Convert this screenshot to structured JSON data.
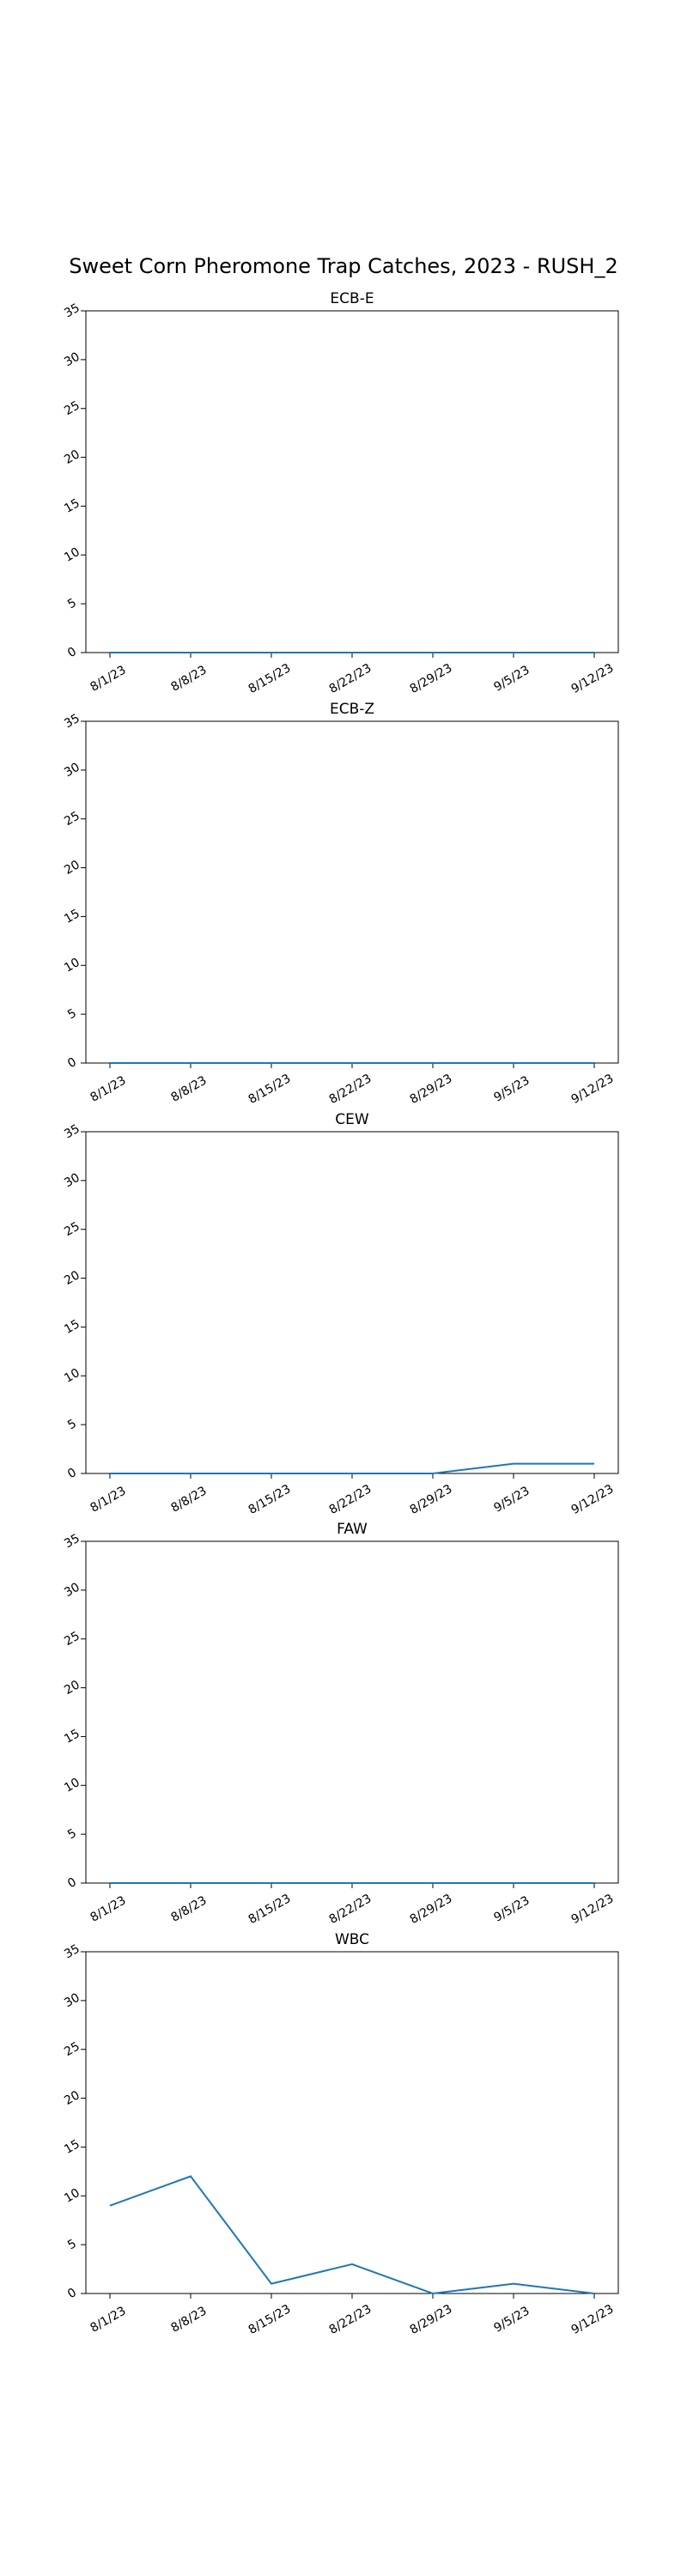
{
  "chart_data": {
    "type": "line",
    "title": "Sweet Corn Pheromone Trap Catches, 2023 - RUSH_2",
    "categories": [
      "8/1/23",
      "8/8/23",
      "8/15/23",
      "8/22/23",
      "8/29/23",
      "9/5/23",
      "9/12/23"
    ],
    "ylim": [
      0,
      35
    ],
    "yticks": [
      0,
      5,
      10,
      15,
      20,
      25,
      30,
      35
    ],
    "grid": false,
    "line_color": "#1f77b4",
    "panels": [
      {
        "title": "ECB-E",
        "values": [
          0,
          0,
          0,
          0,
          0,
          0,
          0
        ]
      },
      {
        "title": "ECB-Z",
        "values": [
          0,
          0,
          0,
          0,
          0,
          0,
          0
        ]
      },
      {
        "title": "CEW",
        "values": [
          0,
          0,
          0,
          0,
          0,
          1,
          1
        ]
      },
      {
        "title": "FAW",
        "values": [
          0,
          0,
          0,
          0,
          0,
          0,
          0
        ]
      },
      {
        "title": "WBC",
        "values": [
          9,
          12,
          1,
          3,
          0,
          1,
          0
        ]
      }
    ]
  }
}
